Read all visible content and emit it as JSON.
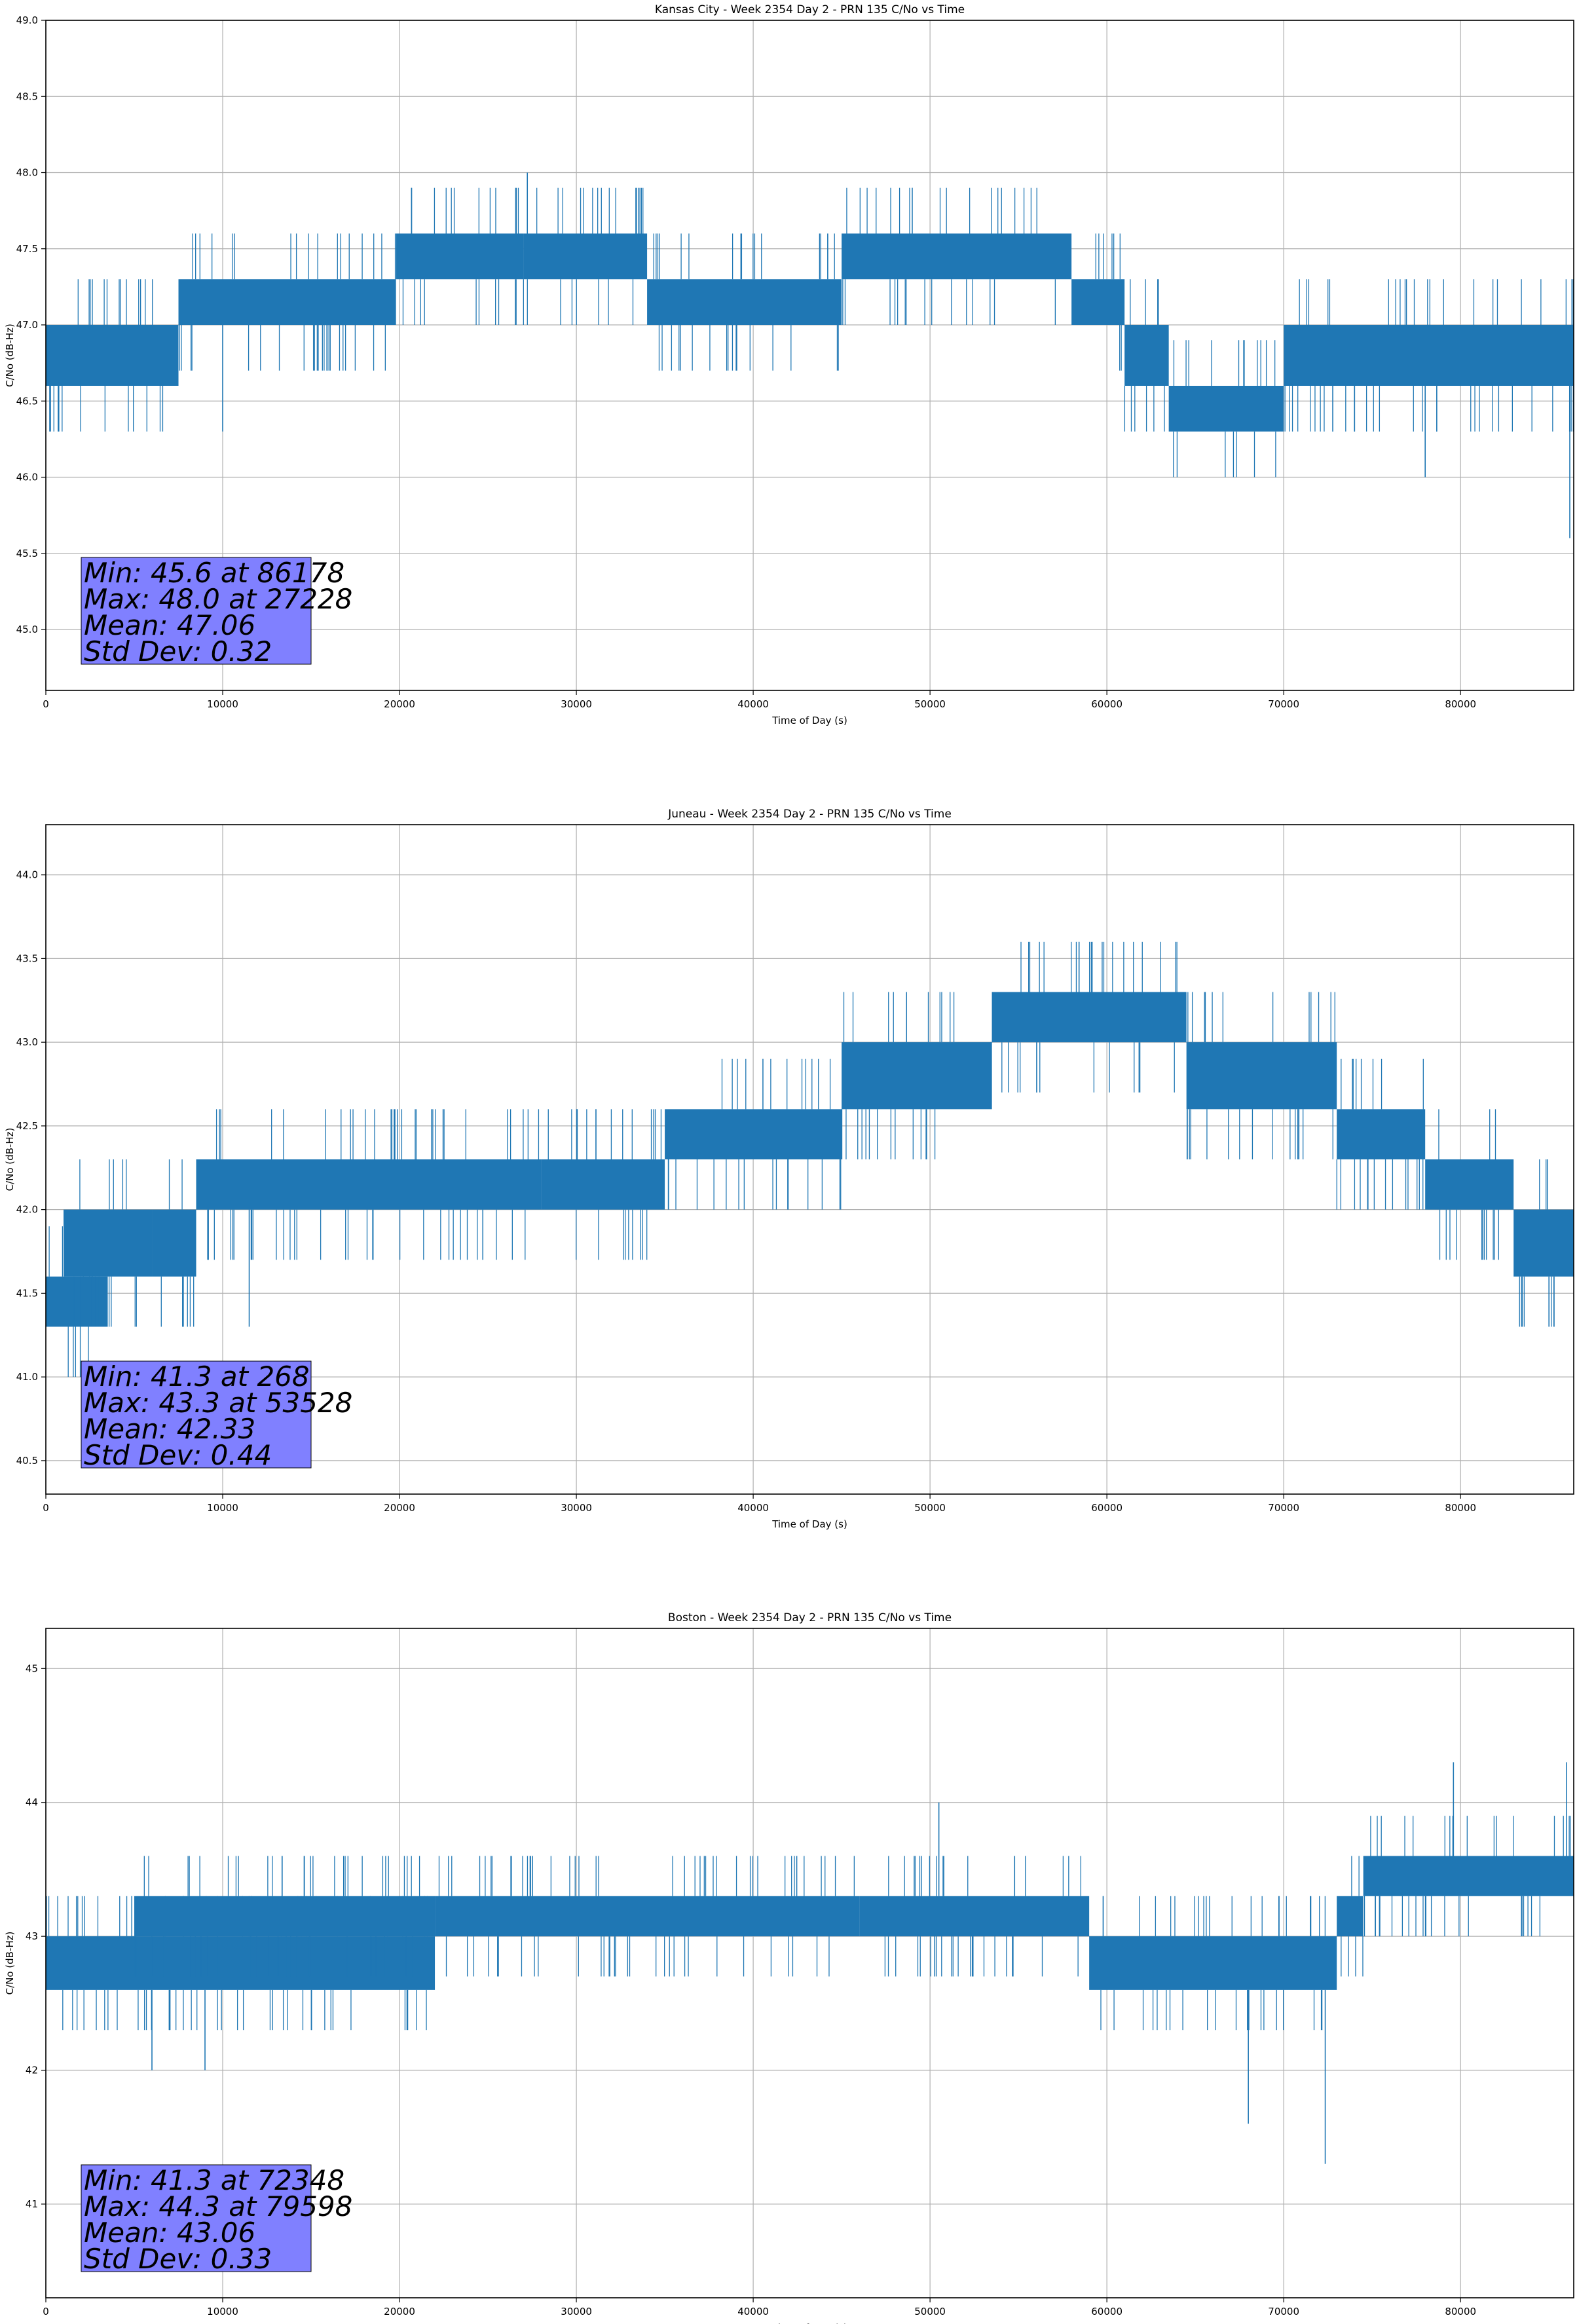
{
  "chart_data": [
    {
      "type": "line",
      "title": "Kansas City - Week 2354 Day 2 - PRN 135 C/No vs Time",
      "xlabel": "Time of Day (s)",
      "ylabel": "C/No (dB-Hz)",
      "xlim": [
        0,
        86400
      ],
      "ylim": [
        44.6,
        49.0
      ],
      "grid": true,
      "color": "#1f77b4",
      "xticks": [
        0,
        10000,
        20000,
        30000,
        40000,
        50000,
        60000,
        70000,
        80000
      ],
      "xtick_labels": [
        "0",
        "10000",
        "20000",
        "30000",
        "40000",
        "50000",
        "60000",
        "70000",
        "80000"
      ],
      "yticks": [
        45.0,
        45.5,
        46.0,
        46.5,
        47.0,
        47.5,
        48.0,
        48.5,
        49.0
      ],
      "ytick_labels": [
        "45.0",
        "45.5",
        "46.0",
        "46.5",
        "47.0",
        "47.5",
        "48.0",
        "48.5",
        "49.0"
      ],
      "series": [
        {
          "name": "C/No",
          "segments": [
            {
              "x": [
                0,
                7500
              ],
              "lo": 46.6,
              "hi": 47.0
            },
            {
              "x": [
                7500,
                19800
              ],
              "lo": 47.0,
              "hi": 47.3
            },
            {
              "x": [
                19800,
                27000
              ],
              "lo": 47.3,
              "hi": 47.6
            },
            {
              "x": [
                27000,
                34000
              ],
              "lo": 47.3,
              "hi": 47.6
            },
            {
              "x": [
                34000,
                45000
              ],
              "lo": 47.0,
              "hi": 47.3
            },
            {
              "x": [
                45000,
                58000
              ],
              "lo": 47.3,
              "hi": 47.6
            },
            {
              "x": [
                58000,
                61000
              ],
              "lo": 47.0,
              "hi": 47.3
            },
            {
              "x": [
                61000,
                63500
              ],
              "lo": 46.6,
              "hi": 47.0
            },
            {
              "x": [
                63500,
                70000
              ],
              "lo": 46.3,
              "hi": 46.6
            },
            {
              "x": [
                70000,
                86400
              ],
              "lo": 46.6,
              "hi": 47.0
            }
          ],
          "spikes": [
            {
              "x": 700,
              "y": 46.3
            },
            {
              "x": 10000,
              "y": 46.3
            },
            {
              "x": 27228,
              "y": 48.0
            },
            {
              "x": 78000,
              "y": 46.0
            },
            {
              "x": 86178,
              "y": 45.6
            }
          ]
        }
      ],
      "stats": {
        "min": "Min: 45.6 at 86178",
        "max": "Max: 48.0 at 27228",
        "mean": "Mean: 47.06",
        "std": "Std Dev: 0.32"
      },
      "stats_box_color": "#8080ff"
    },
    {
      "type": "line",
      "title": "Juneau - Week 2354 Day 2 - PRN 135 C/No vs Time",
      "xlabel": "Time of Day (s)",
      "ylabel": "C/No (dB-Hz)",
      "xlim": [
        0,
        86400
      ],
      "ylim": [
        40.3,
        44.3
      ],
      "grid": true,
      "color": "#1f77b4",
      "xticks": [
        0,
        10000,
        20000,
        30000,
        40000,
        50000,
        60000,
        70000,
        80000
      ],
      "xtick_labels": [
        "0",
        "10000",
        "20000",
        "30000",
        "40000",
        "50000",
        "60000",
        "70000",
        "80000"
      ],
      "yticks": [
        40.5,
        41.0,
        41.5,
        42.0,
        42.5,
        43.0,
        43.5,
        44.0
      ],
      "ytick_labels": [
        "40.5",
        "41.0",
        "41.5",
        "42.0",
        "42.5",
        "43.0",
        "43.5",
        "44.0"
      ],
      "series": [
        {
          "name": "C/No",
          "segments": [
            {
              "x": [
                0,
                3500
              ],
              "lo": 41.3,
              "hi": 41.6
            },
            {
              "x": [
                1000,
                6000
              ],
              "lo": 41.6,
              "hi": 42.0
            },
            {
              "x": [
                6000,
                8500
              ],
              "lo": 41.6,
              "hi": 42.0
            },
            {
              "x": [
                8500,
                28000
              ],
              "lo": 42.0,
              "hi": 42.3
            },
            {
              "x": [
                28000,
                35000
              ],
              "lo": 42.0,
              "hi": 42.3
            },
            {
              "x": [
                35000,
                45000
              ],
              "lo": 42.3,
              "hi": 42.6
            },
            {
              "x": [
                45000,
                53500
              ],
              "lo": 42.6,
              "hi": 43.0
            },
            {
              "x": [
                53500,
                64500
              ],
              "lo": 43.0,
              "hi": 43.3
            },
            {
              "x": [
                64500,
                73000
              ],
              "lo": 42.6,
              "hi": 43.0
            },
            {
              "x": [
                73000,
                78000
              ],
              "lo": 42.3,
              "hi": 42.6
            },
            {
              "x": [
                78000,
                83000
              ],
              "lo": 42.0,
              "hi": 42.3
            },
            {
              "x": [
                83000,
                86400
              ],
              "lo": 41.6,
              "hi": 42.0
            }
          ],
          "spikes": [
            {
              "x": 268,
              "y": 41.3
            },
            {
              "x": 11500,
              "y": 41.3
            },
            {
              "x": 19700,
              "y": 42.6
            },
            {
              "x": 53528,
              "y": 43.3
            },
            {
              "x": 85000,
              "y": 41.3
            }
          ]
        }
      ],
      "stats": {
        "min": "Min: 41.3 at 268",
        "max": "Max: 43.3 at 53528",
        "mean": "Mean: 42.33",
        "std": "Std Dev: 0.44"
      },
      "stats_box_color": "#8080ff"
    },
    {
      "type": "line",
      "title": "Boston - Week 2354 Day 2 - PRN 135 C/No vs Time",
      "xlabel": "Time of Day (s)",
      "ylabel": "C/No (dB-Hz)",
      "xlim": [
        0,
        86400
      ],
      "ylim": [
        40.3,
        45.3
      ],
      "grid": true,
      "color": "#1f77b4",
      "xticks": [
        0,
        10000,
        20000,
        30000,
        40000,
        50000,
        60000,
        70000,
        80000
      ],
      "xtick_labels": [
        "0",
        "10000",
        "20000",
        "30000",
        "40000",
        "50000",
        "60000",
        "70000",
        "80000"
      ],
      "yticks": [
        41,
        42,
        43,
        44,
        45
      ],
      "ytick_labels": [
        "41",
        "42",
        "43",
        "44",
        "45"
      ],
      "series": [
        {
          "name": "C/No",
          "segments": [
            {
              "x": [
                0,
                22000
              ],
              "lo": 42.6,
              "hi": 43.0
            },
            {
              "x": [
                5000,
                22000
              ],
              "lo": 43.0,
              "hi": 43.3
            },
            {
              "x": [
                22000,
                46000
              ],
              "lo": 43.0,
              "hi": 43.3
            },
            {
              "x": [
                46000,
                59000
              ],
              "lo": 43.0,
              "hi": 43.3
            },
            {
              "x": [
                59000,
                73000
              ],
              "lo": 42.6,
              "hi": 43.0
            },
            {
              "x": [
                73000,
                74500
              ],
              "lo": 43.0,
              "hi": 43.3
            },
            {
              "x": [
                74500,
                86400
              ],
              "lo": 43.3,
              "hi": 43.6
            }
          ],
          "spikes": [
            {
              "x": 6000,
              "y": 42.0
            },
            {
              "x": 9000,
              "y": 42.0
            },
            {
              "x": 50500,
              "y": 44.0
            },
            {
              "x": 68000,
              "y": 41.6
            },
            {
              "x": 72348,
              "y": 41.3
            },
            {
              "x": 79598,
              "y": 44.3
            },
            {
              "x": 86000,
              "y": 44.3
            }
          ]
        }
      ],
      "stats": {
        "min": "Min: 41.3 at 72348",
        "max": "Max: 44.3 at 79598",
        "mean": "Mean: 43.06",
        "std": "Std Dev: 0.33"
      },
      "stats_box_color": "#8080ff"
    }
  ]
}
